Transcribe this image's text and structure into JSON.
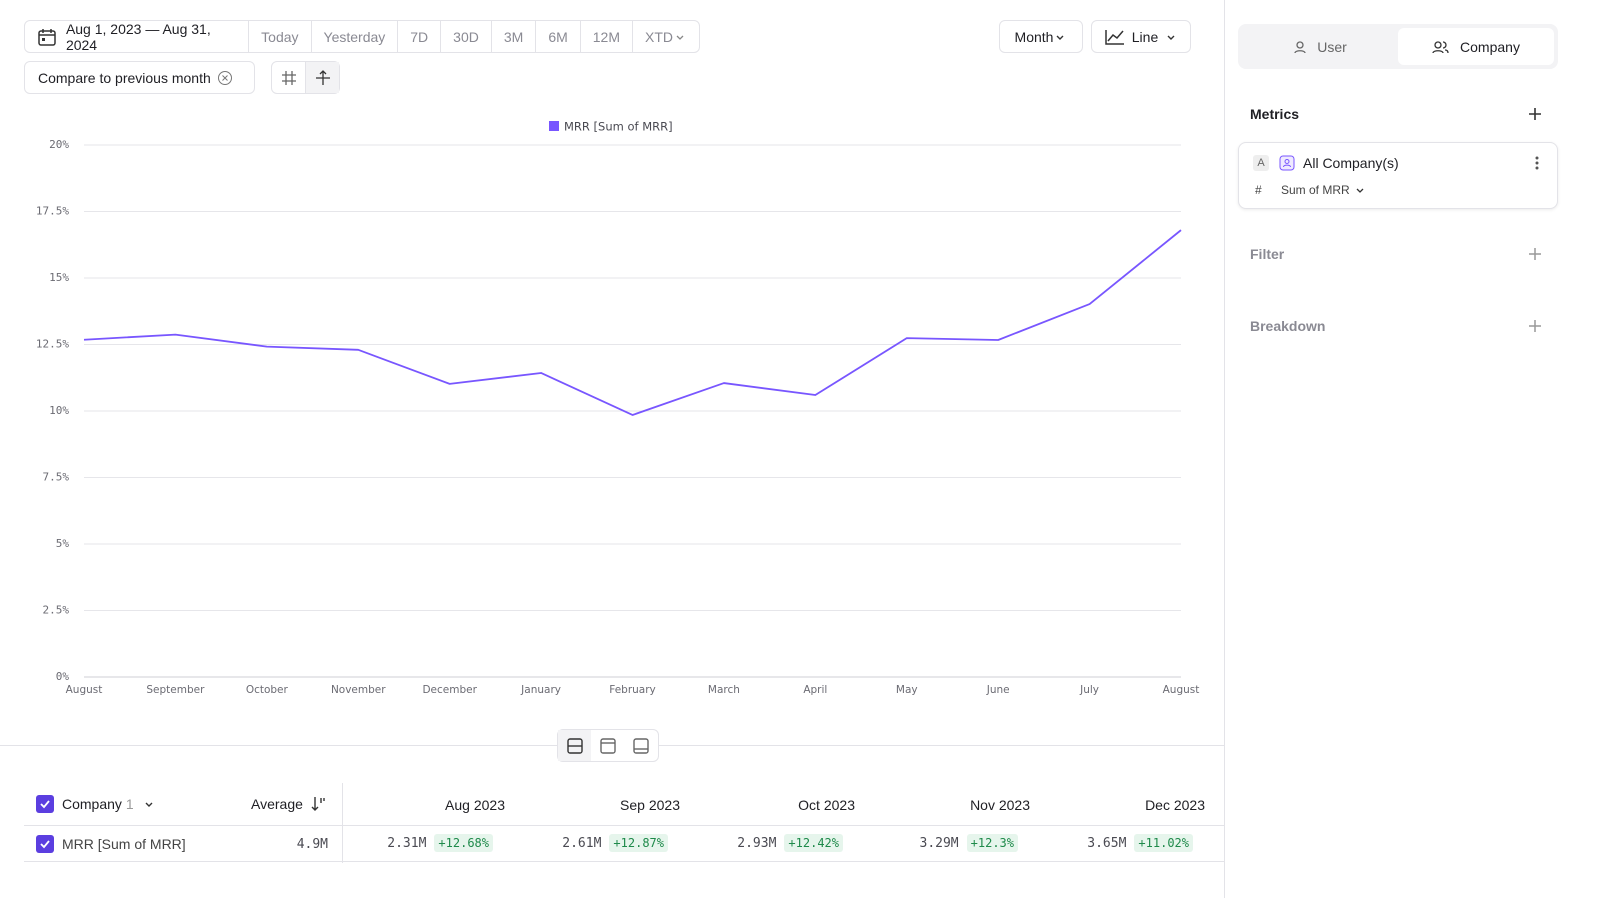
{
  "toolbar": {
    "date_range": "Aug 1, 2023 — Aug 31, 2024",
    "presets": [
      "Today",
      "Yesterday",
      "7D",
      "30D",
      "3M",
      "6M",
      "12M",
      "XTD"
    ],
    "interval": "Month",
    "chart_kind": "Line",
    "compare": "Compare to previous month"
  },
  "chart_data": {
    "type": "line",
    "categories": [
      "August",
      "September",
      "October",
      "November",
      "December",
      "January",
      "February",
      "March",
      "April",
      "May",
      "June",
      "July",
      "August"
    ],
    "series": [
      {
        "name": "MRR [Sum of MRR]",
        "color": "#7856ff",
        "values": [
          12.68,
          12.87,
          12.42,
          12.3,
          11.02,
          11.43,
          9.85,
          11.05,
          10.6,
          12.74,
          12.67,
          14.02,
          16.8
        ]
      }
    ],
    "ylim": [
      0,
      20
    ],
    "yticks": [
      {
        "value": 0,
        "label": "0%"
      },
      {
        "value": 2.5,
        "label": "2.5%"
      },
      {
        "value": 5,
        "label": "5%"
      },
      {
        "value": 7.5,
        "label": "7.5%"
      },
      {
        "value": 10,
        "label": "10%"
      },
      {
        "value": 12.5,
        "label": "12.5%"
      },
      {
        "value": 15,
        "label": "15%"
      },
      {
        "value": 17.5,
        "label": "17.5%"
      },
      {
        "value": 20,
        "label": "20%"
      }
    ],
    "grid": true
  },
  "sidebar": {
    "tabs": [
      "User",
      "Company"
    ],
    "metrics": "Metrics",
    "metric": {
      "letter": "A",
      "name": "All Company(s)",
      "measure": "Sum of MRR"
    },
    "filter": "Filter",
    "breakdown": "Breakdown"
  },
  "table": {
    "group": "Company",
    "count": 1,
    "average": "Average",
    "columns": [
      "Aug 2023",
      "Sep 2023",
      "Oct 2023",
      "Nov 2023",
      "Dec 2023"
    ],
    "rows": [
      {
        "name": "MRR [Sum of MRR]",
        "average": "4.9M",
        "cells": [
          {
            "value": "2.31M",
            "change": "+12.68%"
          },
          {
            "value": "2.61M",
            "change": "+12.87%"
          },
          {
            "value": "2.93M",
            "change": "+12.42%"
          },
          {
            "value": "3.29M",
            "change": "+12.3%"
          },
          {
            "value": "3.65M",
            "change": "+11.02%"
          }
        ]
      }
    ]
  }
}
